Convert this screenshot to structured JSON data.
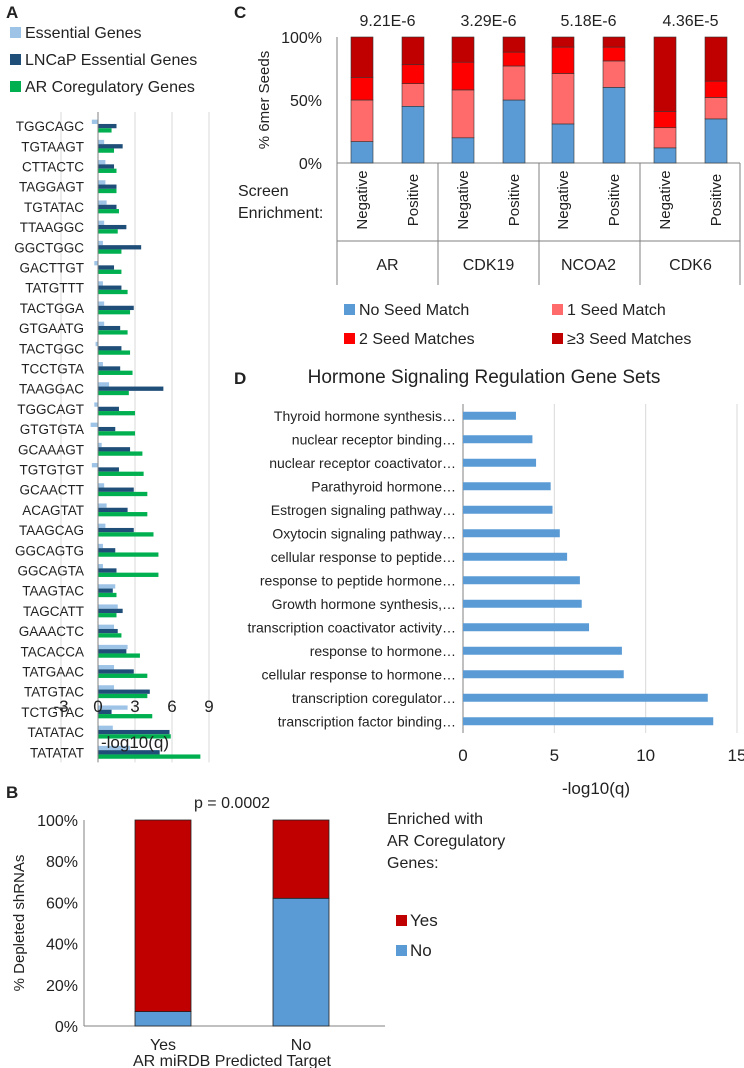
{
  "panels": [
    "A",
    "B",
    "C",
    "D"
  ],
  "colors": {
    "essential": "#9DC3E6",
    "lncap": "#1F4E79",
    "ar_coreg": "#00B050",
    "no_seed": "#5B9BD5",
    "one_seed": "#FF6B6B",
    "two_seed": "#FF0000",
    "three_seed": "#C00000",
    "yes": "#C00000",
    "no": "#5B9BD5",
    "d_bar": "#5B9BD5",
    "grid": "#D9D9D9",
    "axis": "#808080"
  },
  "chart_data": [
    {
      "panel": "A",
      "type": "bar",
      "orientation": "horizontal",
      "xlabel": "-log10(q)",
      "xlim": [
        -3,
        9
      ],
      "xticks": [
        "-3",
        "0",
        "3",
        "6",
        "9"
      ],
      "xtick_values": [
        -3,
        0,
        3,
        6,
        9
      ],
      "grid": true,
      "legend_position": "top-left",
      "categories": [
        "TGGCAGC",
        "TGTAAGT",
        "CTTACTC",
        "TAGGAGT",
        "TGTATAC",
        "TTAAGGC",
        "GGCTGGC",
        "GACTTGT",
        "TATGTTT",
        "TACTGGA",
        "GTGAATG",
        "TACTGGC",
        "TCCTGTA",
        "TAAGGAC",
        "TGGCAGT",
        "GTGTGTA",
        "GCAAAGT",
        "TGTGTGT",
        "GCAACTT",
        "ACAGTAT",
        "TAAGCAG",
        "GGCAGTG",
        "GGCAGTA",
        "TAAGTAC",
        "TAGCATT",
        "GAAACTC",
        "TACACCA",
        "TATGAAC",
        "TATGTAC",
        "TCTGTAC",
        "TATATAC",
        "TATATAT"
      ],
      "series": [
        {
          "name": "Essential Genes",
          "values": [
            -0.5,
            0.5,
            0.6,
            0.6,
            0.7,
            0.5,
            0.4,
            -0.3,
            0.4,
            0.5,
            0.5,
            -0.2,
            0.4,
            0.9,
            -0.3,
            -0.6,
            0.3,
            -0.5,
            0.5,
            0.7,
            0.6,
            0.4,
            0.4,
            1.4,
            1.6,
            1.3,
            2.4,
            1.3,
            1.3,
            2.4,
            1.2,
            2.6
          ]
        },
        {
          "name": "LNCaP Essential Genes",
          "values": [
            1.5,
            2.0,
            1.3,
            1.5,
            1.5,
            2.3,
            3.5,
            1.3,
            1.9,
            2.9,
            1.8,
            1.9,
            1.8,
            5.3,
            1.7,
            1.4,
            2.6,
            1.7,
            2.9,
            2.4,
            2.9,
            1.4,
            1.5,
            1.2,
            2.0,
            1.6,
            2.3,
            2.9,
            4.2,
            1.1,
            5.8,
            5.0
          ]
        },
        {
          "name": "AR Coregulatory Genes",
          "values": [
            1.1,
            1.3,
            1.5,
            1.5,
            1.7,
            1.6,
            1.9,
            1.9,
            2.4,
            2.6,
            2.4,
            2.6,
            2.8,
            2.5,
            3.0,
            3.0,
            3.6,
            3.7,
            4.0,
            4.0,
            4.5,
            4.9,
            4.9,
            1.5,
            1.5,
            1.9,
            3.4,
            4.0,
            4.0,
            4.4,
            5.9,
            8.3
          ]
        }
      ]
    },
    {
      "panel": "B",
      "type": "bar",
      "stacked": true,
      "title": "p = 0.0002",
      "xlabel": "AR miRDB Predicted Target",
      "ylabel": "% Depleted shRNAs",
      "ylim": [
        0,
        100
      ],
      "yticks": [
        "0%",
        "20%",
        "40%",
        "60%",
        "80%",
        "100%"
      ],
      "ytick_values": [
        0,
        20,
        40,
        60,
        80,
        100
      ],
      "categories": [
        "Yes",
        "No"
      ],
      "series": [
        {
          "name": "No",
          "values": [
            7,
            62
          ]
        },
        {
          "name": "Yes",
          "values": [
            93,
            38
          ]
        }
      ],
      "legend_title": "Enriched with AR Coregulatory Genes:",
      "legend_title_lines": [
        "Enriched with",
        "AR Coregulatory",
        "Genes:"
      ],
      "legend_position": "right"
    },
    {
      "panel": "C",
      "type": "bar",
      "stacked": true,
      "ylabel": "% 6mer Seeds",
      "ylim": [
        0,
        100
      ],
      "yticks": [
        "0%",
        "50%",
        "100%"
      ],
      "ytick_values": [
        0,
        50,
        100
      ],
      "row_label": "Screen Enrichment:",
      "row_label_lines": [
        "Screen",
        "Enrichment:"
      ],
      "groups": [
        {
          "name": "AR",
          "pvalue": "9.21E-6"
        },
        {
          "name": "CDK19",
          "pvalue": "3.29E-6"
        },
        {
          "name": "NCOA2",
          "pvalue": "5.18E-6"
        },
        {
          "name": "CDK6",
          "pvalue": "4.36E-5"
        }
      ],
      "categories": [
        "Negative",
        "Positive",
        "Negative",
        "Positive",
        "Negative",
        "Positive",
        "Negative",
        "Positive"
      ],
      "series": [
        {
          "name": "No Seed Match",
          "values": [
            17,
            45,
            20,
            50,
            31,
            60,
            12,
            35
          ]
        },
        {
          "name": "1 Seed Match",
          "values": [
            33,
            18,
            38,
            27,
            40,
            21,
            16,
            17
          ]
        },
        {
          "name": "2 Seed Matches",
          "values": [
            18,
            15,
            22,
            11,
            21,
            11,
            13,
            13
          ]
        },
        {
          "name": "≥3 Seed Matches",
          "values": [
            32,
            22,
            20,
            12,
            8,
            8,
            59,
            35
          ]
        }
      ],
      "legend_position": "bottom"
    },
    {
      "panel": "D",
      "type": "bar",
      "orientation": "horizontal",
      "title": "Hormone Signaling Regulation Gene Sets",
      "xlabel": "-log10(q)",
      "xlim": [
        0,
        15
      ],
      "xticks": [
        "0",
        "5",
        "10",
        "15"
      ],
      "xtick_values": [
        0,
        5,
        10,
        15
      ],
      "grid": true,
      "categories": [
        "Thyroid hormone synthesis…",
        "nuclear receptor binding…",
        "nuclear receptor coactivator…",
        "Parathyroid hormone…",
        "Estrogen signaling pathway…",
        "Oxytocin signaling pathway…",
        "cellular response to peptide…",
        "response to peptide hormone…",
        "Growth hormone synthesis,…",
        "transcription coactivator activity…",
        "response to hormone…",
        "cellular response to hormone…",
        "transcription coregulator…",
        "transcription factor binding…"
      ],
      "values": [
        2.9,
        3.8,
        4.0,
        4.8,
        4.9,
        5.3,
        5.7,
        6.4,
        6.5,
        6.9,
        8.7,
        8.8,
        13.4,
        13.7
      ]
    }
  ]
}
